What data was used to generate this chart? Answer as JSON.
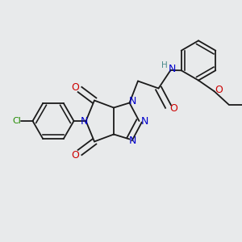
{
  "background_color": "#e8eaeb",
  "bond_color": "#1a1a1a",
  "figsize": [
    3.0,
    3.0
  ],
  "dpi": 100,
  "colors": {
    "Cl": "#228B00",
    "N": "#0000CC",
    "O": "#CC0000",
    "NH": "#4a8a8a",
    "C": "#1a1a1a"
  },
  "xlim": [
    0.0,
    10.0
  ],
  "ylim": [
    0.0,
    10.0
  ]
}
